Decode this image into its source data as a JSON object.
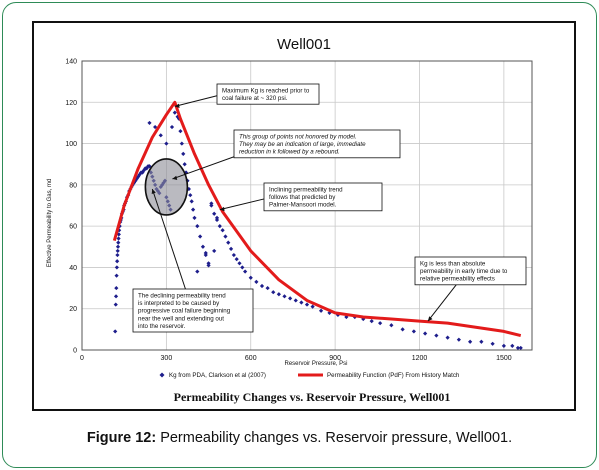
{
  "figure": {
    "caption_label": "Figure 12:",
    "caption_text": " Permeability changes vs. Reservoir pressure, Well001."
  },
  "chart_data": {
    "type": "scatter",
    "title": "Well001",
    "subtitle": "Permeability Changes vs. Reservoir Pressure, Well001",
    "xlabel": "Reservoir Pressure, Psi",
    "ylabel": "Effective Permeability to Gas, md",
    "xlim": [
      0,
      1600
    ],
    "ylim": [
      0,
      140
    ],
    "xticks": [
      0,
      300,
      600,
      900,
      1200,
      1500
    ],
    "yticks": [
      0,
      20,
      40,
      60,
      80,
      100,
      120,
      140
    ],
    "grid": true,
    "legend_position": "bottom",
    "series": [
      {
        "name": "Kg from PDA, Clarkson et al (2007)",
        "kind": "scatter",
        "color": "#1e1e8c",
        "x": [
          118,
          120,
          121,
          122,
          123,
          124,
          125,
          126,
          127,
          128,
          129,
          130,
          131,
          132,
          134,
          136,
          138,
          140,
          142,
          145,
          148,
          150,
          153,
          156,
          160,
          164,
          168,
          172,
          176,
          180,
          185,
          190,
          195,
          200,
          205,
          210,
          215,
          220,
          225,
          230,
          235,
          240,
          245,
          250,
          255,
          260,
          265,
          270,
          275,
          280,
          285,
          290,
          295,
          300,
          305,
          310,
          315,
          240,
          260,
          280,
          300,
          320,
          330,
          340,
          345,
          350,
          355,
          360,
          365,
          370,
          375,
          380,
          385,
          390,
          395,
          400,
          410,
          420,
          430,
          440,
          450,
          460,
          470,
          480,
          490,
          500,
          510,
          520,
          530,
          540,
          550,
          560,
          570,
          580,
          600,
          620,
          640,
          660,
          680,
          700,
          720,
          740,
          760,
          780,
          800,
          820,
          850,
          880,
          910,
          940,
          970,
          1000,
          1030,
          1060,
          1100,
          1140,
          1180,
          1220,
          1260,
          1300,
          1340,
          1380,
          1420,
          1460,
          1500,
          1530,
          1550,
          1560,
          440,
          460,
          480,
          450,
          470,
          410
        ],
        "y": [
          9,
          22,
          26,
          30,
          36,
          40,
          43,
          46,
          48,
          50,
          52,
          54,
          56,
          58,
          60,
          62,
          63,
          64,
          66,
          67,
          68,
          70,
          71,
          72,
          74,
          75,
          77,
          78,
          79,
          80,
          81,
          82,
          83,
          84,
          85,
          86,
          86,
          87,
          88,
          88,
          89,
          89,
          86,
          84,
          82,
          80,
          78,
          77,
          76,
          79,
          80,
          81,
          82,
          74,
          72,
          70,
          68,
          110,
          108,
          104,
          100,
          108,
          115,
          113,
          112,
          106,
          100,
          95,
          90,
          86,
          82,
          78,
          75,
          72,
          68,
          64,
          60,
          55,
          50,
          46,
          41,
          70,
          66,
          63,
          60,
          58,
          55,
          52,
          49,
          46,
          44,
          42,
          40,
          38,
          35,
          33,
          31,
          30,
          28,
          27,
          26,
          25,
          24,
          23,
          22,
          21,
          19,
          18,
          17,
          16,
          16,
          15,
          14,
          13,
          12,
          10,
          9,
          8,
          7,
          6,
          5,
          4,
          4,
          3,
          2,
          2,
          1,
          1,
          47,
          71,
          64,
          42,
          48,
          38
        ]
      },
      {
        "name": "Permeability Function (PdF) From History Match",
        "kind": "line",
        "color": "#e31b1b",
        "x": [
          115,
          150,
          200,
          250,
          300,
          330,
          350,
          400,
          450,
          500,
          600,
          700,
          800,
          900,
          1000,
          1100,
          1200,
          1300,
          1400,
          1500,
          1560
        ],
        "y": [
          53,
          70,
          88,
          103,
          114,
          120,
          112,
          95,
          80,
          67,
          48,
          34,
          24,
          18,
          16,
          15,
          14,
          13,
          11,
          9,
          7
        ]
      }
    ],
    "annotations": [
      {
        "text": "Maximum Kg is reached prior to coal failure at ~ 320 psi."
      },
      {
        "text": "This group of points not honored by model. They may be an indication of large, immediate reduction in k followed by a rebound."
      },
      {
        "text": "Inclining permeability trend follows that predicted by Palmer-Mansoori model."
      },
      {
        "text": "The declining permeability trend is interpreted to be caused by progressive coal failure beginning near the well and extending out into the reservoir."
      },
      {
        "text": "Kg is less than absolute permeability in early time due to relative permeability effects"
      }
    ]
  }
}
